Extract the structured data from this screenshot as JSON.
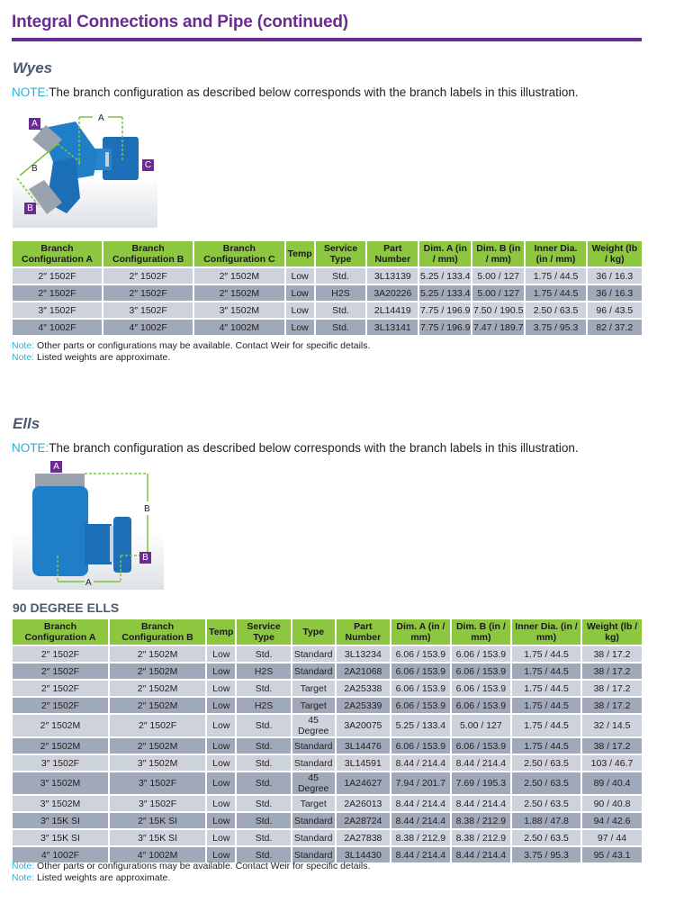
{
  "page": {
    "title": "Integral Connections and Pipe (continued)"
  },
  "colors": {
    "accent_purple": "#6b2c91",
    "header_green": "#8dc63f",
    "note_cyan": "#1fb3e0",
    "row_light": "#cdd2dc",
    "row_dark": "#a0a9b9"
  },
  "wyes": {
    "heading": "Wyes",
    "note_key": "NOTE:",
    "note_text": "The branch configuration as described below corresponds with the branch labels in this illustration.",
    "illustration": {
      "labels": [
        "A",
        "B",
        "C"
      ],
      "dims": [
        "A",
        "B"
      ]
    },
    "columns": [
      "Branch Configuration A",
      "Branch Configuration B",
      "Branch Configuration C",
      "Temp",
      "Service Type",
      "Part Number",
      "Dim. A (in / mm)",
      "Dim. B (in / mm)",
      "Inner Dia. (in / mm)",
      "Weight (lb / kg)"
    ],
    "rows": [
      [
        "2″ 1502F",
        "2″ 1502F",
        "2″ 1502M",
        "Low",
        "Std.",
        "3L13139",
        "5.25 / 133.4",
        "5.00 / 127",
        "1.75 / 44.5",
        "36 / 16.3"
      ],
      [
        "2″ 1502F",
        "2″ 1502F",
        "2″ 1502M",
        "Low",
        "H2S",
        "3A20226",
        "5.25 / 133.4",
        "5.00 / 127",
        "1.75 / 44.5",
        "36 / 16.3"
      ],
      [
        "3″ 1502F",
        "3″ 1502F",
        "3″ 1502M",
        "Low",
        "Std.",
        "2L14419",
        "7.75 / 196.9",
        "7.50 / 190.5",
        "2.50 / 63.5",
        "96 / 43.5"
      ],
      [
        "4″ 1002F",
        "4″ 1002F",
        "4″ 1002M",
        "Low",
        "Std.",
        "3L13141",
        "7.75 / 196.9",
        "7.47 / 189.7",
        "3.75 / 95.3",
        "82 / 37.2"
      ]
    ],
    "footnotes": [
      {
        "key": "Note:",
        "text": " Other parts or configurations may be available. Contact Weir for specific details."
      },
      {
        "key": "Note:",
        "text": " Listed weights are approximate."
      }
    ]
  },
  "ells": {
    "heading": "Ells",
    "note_key": "NOTE:",
    "note_text": "The branch configuration as described below corresponds with the branch labels in this illustration.",
    "illustration": {
      "labels": [
        "A",
        "B"
      ],
      "dims": [
        "A",
        "B"
      ]
    },
    "subheading": "90 DEGREE ELLS",
    "columns": [
      "Branch Configuration A",
      "Branch Configuration B",
      "Temp",
      "Service Type",
      "Type",
      "Part Number",
      "Dim. A (in / mm)",
      "Dim. B (in / mm)",
      "Inner Dia. (in / mm)",
      "Weight (lb / kg)"
    ],
    "rows": [
      [
        "2″ 1502F",
        "2″ 1502M",
        "Low",
        "Std.",
        "Standard",
        "3L13234",
        "6.06 / 153.9",
        "6.06 / 153.9",
        "1.75 / 44.5",
        "38 / 17.2"
      ],
      [
        "2″ 1502F",
        "2″ 1502M",
        "Low",
        "H2S",
        "Standard",
        "2A21068",
        "6.06 / 153.9",
        "6.06 / 153.9",
        "1.75 / 44.5",
        "38 / 17.2"
      ],
      [
        "2″ 1502F",
        "2″ 1502M",
        "Low",
        "Std.",
        "Target",
        "2A25338",
        "6.06 / 153.9",
        "6.06 / 153.9",
        "1.75 / 44.5",
        "38 / 17.2"
      ],
      [
        "2″ 1502F",
        "2″ 1502M",
        "Low",
        "H2S",
        "Target",
        "2A25339",
        "6.06 / 153.9",
        "6.06 / 153.9",
        "1.75 / 44.5",
        "38 / 17.2"
      ],
      [
        "2″ 1502M",
        "2″ 1502F",
        "Low",
        "Std.",
        "45 Degree",
        "3A20075",
        "5.25 / 133.4",
        "5.00 / 127",
        "1.75 / 44.5",
        "32 / 14.5"
      ],
      [
        "2″ 1502M",
        "2″ 1502M",
        "Low",
        "Std.",
        "Standard",
        "3L14476",
        "6.06 / 153.9",
        "6.06 / 153.9",
        "1.75 / 44.5",
        "38 / 17.2"
      ],
      [
        "3″ 1502F",
        "3″ 1502M",
        "Low",
        "Std.",
        "Standard",
        "3L14591",
        "8.44 / 214.4",
        "8.44 / 214.4",
        "2.50 / 63.5",
        "103 / 46.7"
      ],
      [
        "3″ 1502M",
        "3″ 1502F",
        "Low",
        "Std.",
        "45 Degree",
        "1A24627",
        "7.94 / 201.7",
        "7.69 / 195.3",
        "2.50 / 63.5",
        "89 / 40.4"
      ],
      [
        "3″ 1502M",
        "3″ 1502F",
        "Low",
        "Std.",
        "Target",
        "2A26013",
        "8.44 / 214.4",
        "8.44 / 214.4",
        "2.50 / 63.5",
        "90 / 40.8"
      ],
      [
        "3″ 15K SI",
        "2″ 15K SI",
        "Low",
        "Std.",
        "Standard",
        "2A28724",
        "8.44 / 214.4",
        "8.38 / 212.9",
        "1.88 / 47.8",
        "94 / 42.6"
      ],
      [
        "3″ 15K SI",
        "3″ 15K SI",
        "Low",
        "Std.",
        "Standard",
        "2A27838",
        "8.38 / 212.9",
        "8.38 / 212.9",
        "2.50 / 63.5",
        "97 / 44"
      ],
      [
        "4″ 1002F",
        "4″ 1002M",
        "Low",
        "Std.",
        "Standard",
        "3L14430",
        "8.44 / 214.4",
        "8.44 / 214.4",
        "3.75 / 95.3",
        "95 / 43.1"
      ]
    ],
    "footnotes": [
      {
        "key": "Note:",
        "text": " Other parts or configurations may be available. Contact Weir for specific details."
      },
      {
        "key": "Note:",
        "text": " Listed weights are approximate."
      }
    ]
  }
}
